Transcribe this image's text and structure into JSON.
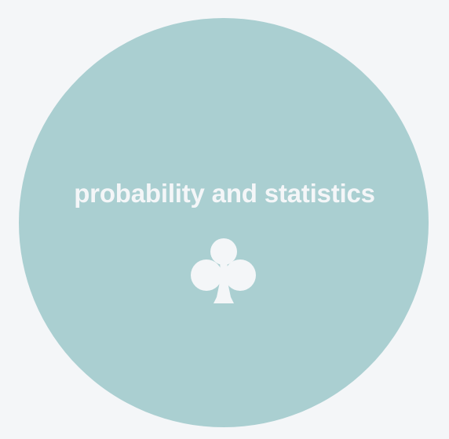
{
  "topic": {
    "title": "probability and statistics",
    "icon": "club-suit-icon",
    "circle_color": "#aacfd1",
    "text_color": "#f4f6f8",
    "background_color": "#f4f6f8"
  }
}
